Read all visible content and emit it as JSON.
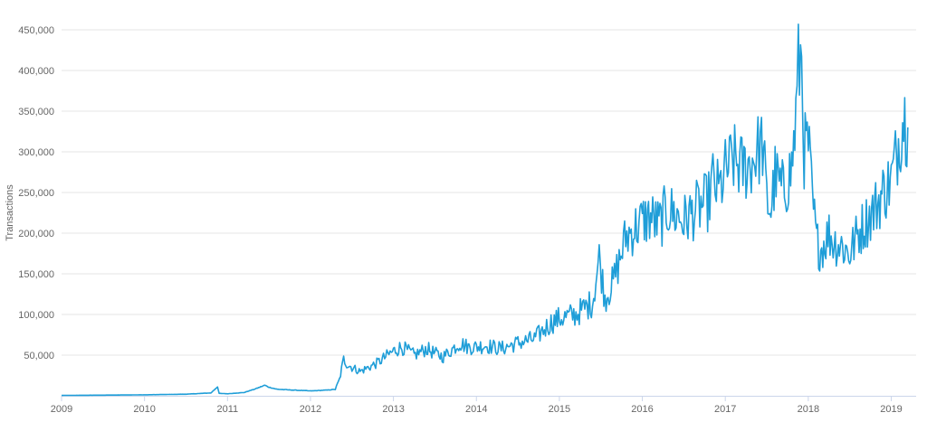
{
  "chart_data": {
    "type": "line",
    "title": "",
    "xlabel": "",
    "ylabel": "Transactions",
    "xlim": [
      2009.0,
      2019.3
    ],
    "ylim": [
      0,
      450000
    ],
    "x_ticks": [
      "2009",
      "2010",
      "2011",
      "2012",
      "2013",
      "2014",
      "2015",
      "2016",
      "2017",
      "2018",
      "2019"
    ],
    "y_ticks": [
      "50,000",
      "100,000",
      "150,000",
      "200,000",
      "250,000",
      "300,000",
      "350,000",
      "400,000",
      "450,000"
    ],
    "grid": true,
    "legend": "none",
    "series_color": "#1f9ed8",
    "series": [
      {
        "x": [
          2009.0,
          2009.5,
          2010.0,
          2010.5,
          2010.8,
          2010.88,
          2010.9,
          2011.0,
          2011.2,
          2011.35,
          2011.45,
          2011.5,
          2011.6,
          2011.8,
          2012.0,
          2012.2,
          2012.3,
          2012.35,
          2012.4,
          2012.45,
          2012.5,
          2012.6,
          2012.8,
          2013.0,
          2013.1,
          2013.25,
          2013.4,
          2013.5,
          2013.6,
          2013.8,
          2013.9,
          2014.0,
          2014.1,
          2014.3,
          2014.5,
          2014.7,
          2014.9,
          2015.0,
          2015.2,
          2015.4,
          2015.48,
          2015.55,
          2015.65,
          2015.72,
          2015.8,
          2016.0,
          2016.1,
          2016.2,
          2016.3,
          2016.5,
          2016.6,
          2016.8,
          2016.85,
          2016.92,
          2017.0,
          2017.1,
          2017.2,
          2017.3,
          2017.38,
          2017.45,
          2017.5,
          2017.55,
          2017.6,
          2017.7,
          2017.8,
          2017.85,
          2017.88,
          2017.92,
          2017.95,
          2018.0,
          2018.05,
          2018.1,
          2018.15,
          2018.25,
          2018.3,
          2018.4,
          2018.5,
          2018.6,
          2018.7,
          2018.8,
          2018.9,
          2019.0,
          2019.05,
          2019.1,
          2019.15,
          2019.2
        ],
        "y": [
          500,
          800,
          1200,
          2000,
          3500,
          11000,
          3000,
          2500,
          4000,
          9000,
          13000,
          10500,
          8000,
          7000,
          6000,
          7000,
          8000,
          20000,
          45000,
          38000,
          35000,
          30000,
          40000,
          55000,
          60000,
          50000,
          58000,
          52000,
          48000,
          65000,
          60000,
          60000,
          62000,
          58000,
          65000,
          70000,
          90000,
          95000,
          100000,
          115000,
          170000,
          120000,
          140000,
          165000,
          195000,
          215000,
          220000,
          210000,
          230000,
          215000,
          225000,
          240000,
          265000,
          250000,
          275000,
          290000,
          280000,
          285000,
          300000,
          310000,
          240000,
          230000,
          270000,
          250000,
          280000,
          340000,
          400000,
          420000,
          300000,
          310000,
          240000,
          190000,
          180000,
          200000,
          190000,
          185000,
          175000,
          200000,
          215000,
          230000,
          250000,
          265000,
          290000,
          320000,
          345000,
          330000
        ]
      }
    ]
  }
}
